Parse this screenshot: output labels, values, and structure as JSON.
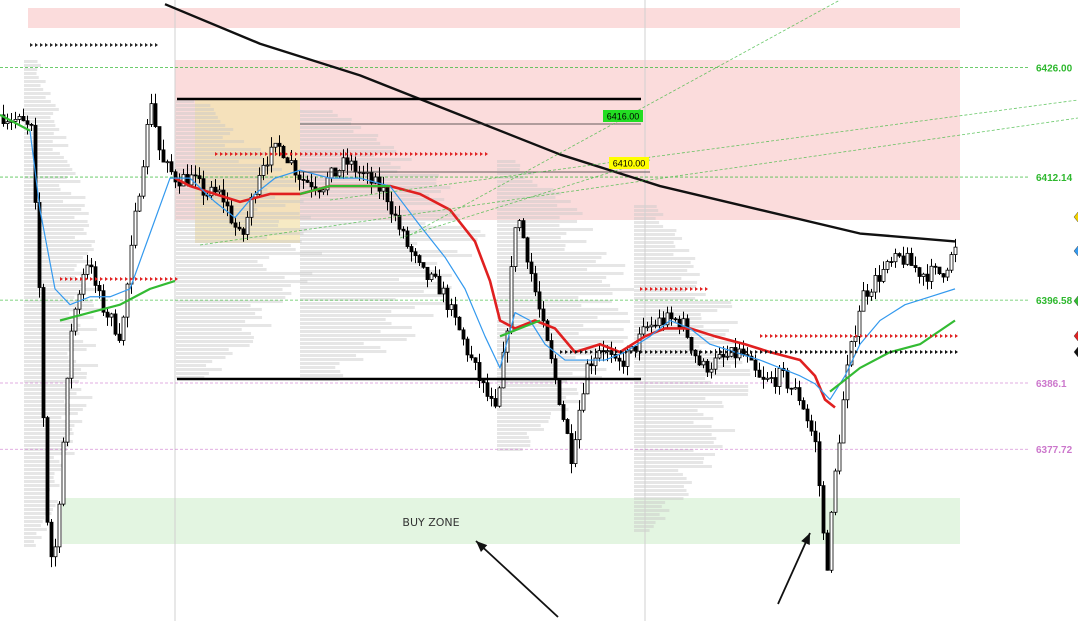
{
  "chart_data": {
    "type": "candlestick",
    "ylim": [
      6356,
      6432
    ],
    "price_axis_labels": [
      {
        "price": 6426.0,
        "text": "6426.00",
        "color": "#2eb82e"
      },
      {
        "price": 6412.14,
        "text": "6412.14",
        "color": "#2eb82e"
      },
      {
        "price": 6396.58,
        "text": "6396.58",
        "color": "#2eb82e"
      },
      {
        "price": 6386.1,
        "text": "6386.1",
        "color": "#cc77cc"
      },
      {
        "price": 6377.72,
        "text": "6377.72",
        "color": "#cc77cc"
      }
    ],
    "box_labels": [
      {
        "price": 6416.0,
        "text": "6416.00",
        "bg": "#22dd22"
      },
      {
        "price": 6410.0,
        "text": "6410.00",
        "bg": "#ffff00"
      }
    ],
    "zones": [
      {
        "name": "BUY ZONE",
        "label": "BUY ZONE",
        "color": "#e3f5e1",
        "from_price": 6358.5,
        "to_price": 6362.5
      },
      {
        "name": "resistance-thin",
        "label": "",
        "color": "#fbdcdc",
        "from_price": 6427.5,
        "to_price": 6429.5
      },
      {
        "name": "resistance-main",
        "label": "",
        "color": "#fbdcdc",
        "from_price": 6403,
        "to_price": 6421.5
      }
    ],
    "range_lines": [
      6419.0,
      6383.7
    ],
    "edge_markers": [
      {
        "color": "#f0d000",
        "shape": "diamond"
      },
      {
        "color": "#3399ee",
        "shape": "diamond"
      },
      {
        "color": "#33bb33",
        "shape": "diamond"
      },
      {
        "color": "#dd2222",
        "shape": "diamond"
      },
      {
        "color": "#111111",
        "shape": "diamond"
      }
    ],
    "colors": {
      "bull": "#ffffff",
      "bear": "#000000",
      "ma_red": "#e02020",
      "ma_blue": "#3399ee",
      "ma_green": "#33bb33",
      "ma_black": "#111111"
    }
  }
}
